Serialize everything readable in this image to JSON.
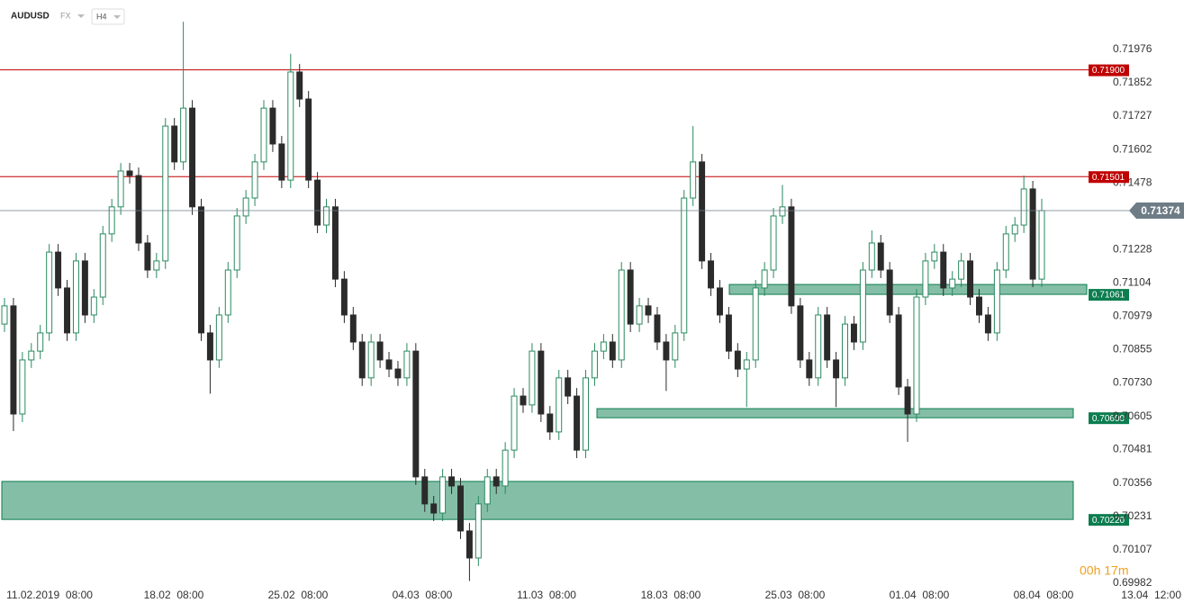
{
  "header": {
    "symbol": "AUDUSD",
    "market": "FX",
    "interval": "H4"
  },
  "timer": "00h 17m",
  "chart_data": {
    "type": "candlestick",
    "open": [
      0.7095,
      0.71018,
      0.70614,
      0.70816,
      0.70849,
      0.70917,
      0.71219,
      0.71085,
      0.70917,
      0.71186,
      0.70984,
      0.71051,
      0.71287,
      0.71388,
      0.71522,
      0.71505,
      0.71253,
      0.71152,
      0.71186,
      0.7169,
      0.71556,
      0.71757,
      0.71388,
      0.70917,
      0.70816,
      0.70984,
      0.71152,
      0.71354,
      0.71421,
      0.71556,
      0.71757,
      0.71623,
      0.71488,
      0.71892,
      0.71791,
      0.71488,
      0.7132,
      0.71388,
      0.71118,
      0.70984,
      0.70883,
      0.70749,
      0.70883,
      0.70816,
      0.70782,
      0.70749,
      0.70849,
      0.70379,
      0.70278,
      0.70244,
      0.70379,
      0.70345,
      0.70177,
      0.70076,
      0.70278,
      0.70379,
      0.70345,
      0.70479,
      0.70681,
      0.70648,
      0.70849,
      0.70614,
      0.70547,
      0.70749,
      0.70681,
      0.70479,
      0.70749,
      0.70849,
      0.70883,
      0.70816,
      0.71152,
      0.7095,
      0.71018,
      0.70984,
      0.70883,
      0.70816,
      0.70917,
      0.71421,
      0.71556,
      0.71186,
      0.71085,
      0.70984,
      0.70849,
      0.70782,
      0.70816,
      0.71085,
      0.71152,
      0.71354,
      0.71388,
      0.71018,
      0.70816,
      0.70749,
      0.70984,
      0.70816,
      0.70749,
      0.7095,
      0.70883,
      0.71152,
      0.71253,
      0.71152,
      0.70984,
      0.70715,
      0.70614,
      0.71051,
      0.71186,
      0.71219,
      0.71085,
      0.71118,
      0.71186,
      0.71051,
      0.70984,
      0.70917,
      0.71152,
      0.71287,
      0.7132,
      0.71455,
      0.71118
    ],
    "high": [
      0.71048,
      0.71048,
      0.70846,
      0.70879,
      0.70947,
      0.71249,
      0.71249,
      0.71115,
      0.71216,
      0.71216,
      0.71081,
      0.71317,
      0.71418,
      0.71552,
      0.71552,
      0.71535,
      0.71283,
      0.71216,
      0.7172,
      0.7172,
      0.7208,
      0.71787,
      0.71418,
      0.70947,
      0.71014,
      0.71182,
      0.71384,
      0.71451,
      0.71586,
      0.71787,
      0.71787,
      0.71653,
      0.7196,
      0.71922,
      0.71821,
      0.71518,
      0.71418,
      0.71418,
      0.71148,
      0.71014,
      0.70913,
      0.70913,
      0.70913,
      0.70846,
      0.70812,
      0.70879,
      0.70879,
      0.70409,
      0.70308,
      0.70409,
      0.70409,
      0.70375,
      0.70207,
      0.70308,
      0.70409,
      0.70409,
      0.70509,
      0.70711,
      0.70711,
      0.70879,
      0.70879,
      0.70644,
      0.70779,
      0.70779,
      0.70711,
      0.70779,
      0.70879,
      0.70913,
      0.70913,
      0.71182,
      0.71182,
      0.71048,
      0.71048,
      0.71014,
      0.70913,
      0.70947,
      0.71451,
      0.7169,
      0.71586,
      0.71216,
      0.71115,
      0.71014,
      0.70879,
      0.70846,
      0.71115,
      0.71182,
      0.71384,
      0.7147,
      0.71418,
      0.71048,
      0.70846,
      0.71014,
      0.71014,
      0.70846,
      0.7098,
      0.7098,
      0.71182,
      0.713,
      0.71283,
      0.71182,
      0.71014,
      0.70745,
      0.71081,
      0.71216,
      0.71249,
      0.71249,
      0.71148,
      0.71216,
      0.71216,
      0.71081,
      0.71014,
      0.71182,
      0.71317,
      0.7135,
      0.71505,
      0.71485,
      0.71418
    ],
    "low": [
      0.7092,
      0.7055,
      0.70584,
      0.70786,
      0.70819,
      0.70887,
      0.71055,
      0.70887,
      0.70887,
      0.70954,
      0.70954,
      0.71021,
      0.71257,
      0.71358,
      0.71475,
      0.71223,
      0.71122,
      0.71122,
      0.71156,
      0.71526,
      0.71526,
      0.71358,
      0.70887,
      0.7069,
      0.70786,
      0.70954,
      0.71122,
      0.71324,
      0.71391,
      0.71526,
      0.71593,
      0.71458,
      0.71458,
      0.71761,
      0.71458,
      0.7129,
      0.7129,
      0.71088,
      0.70954,
      0.70853,
      0.70719,
      0.70719,
      0.70786,
      0.70752,
      0.70719,
      0.70719,
      0.70349,
      0.70248,
      0.70214,
      0.70214,
      0.70315,
      0.70147,
      0.6999,
      0.70046,
      0.70248,
      0.70315,
      0.70315,
      0.70449,
      0.70618,
      0.70618,
      0.70584,
      0.70517,
      0.70517,
      0.70651,
      0.70449,
      0.70449,
      0.70719,
      0.70819,
      0.70786,
      0.70786,
      0.7092,
      0.7092,
      0.70954,
      0.70853,
      0.707,
      0.70786,
      0.70887,
      0.71391,
      0.71156,
      0.71055,
      0.70954,
      0.70819,
      0.70752,
      0.7064,
      0.70786,
      0.71055,
      0.71122,
      0.71324,
      0.70988,
      0.70786,
      0.70719,
      0.70719,
      0.70786,
      0.7064,
      0.70719,
      0.70853,
      0.70853,
      0.71122,
      0.71122,
      0.70954,
      0.70685,
      0.7051,
      0.70584,
      0.71021,
      0.71156,
      0.71055,
      0.71055,
      0.71088,
      0.71021,
      0.70954,
      0.70887,
      0.70887,
      0.71122,
      0.71257,
      0.7129,
      0.71088,
      0.71088
    ],
    "close": [
      0.71018,
      0.70614,
      0.70816,
      0.70849,
      0.70917,
      0.71219,
      0.71085,
      0.70917,
      0.71186,
      0.70984,
      0.71051,
      0.71287,
      0.71388,
      0.71522,
      0.71505,
      0.71253,
      0.71152,
      0.71186,
      0.7169,
      0.71556,
      0.71757,
      0.71388,
      0.70917,
      0.70816,
      0.70984,
      0.71152,
      0.71354,
      0.71421,
      0.71556,
      0.71757,
      0.71623,
      0.71488,
      0.71892,
      0.71791,
      0.71488,
      0.7132,
      0.71388,
      0.71118,
      0.70984,
      0.70883,
      0.70749,
      0.70883,
      0.70816,
      0.70782,
      0.70749,
      0.70849,
      0.70379,
      0.70278,
      0.70244,
      0.70379,
      0.70345,
      0.70177,
      0.70076,
      0.70278,
      0.70379,
      0.70345,
      0.70479,
      0.70681,
      0.70648,
      0.70849,
      0.70614,
      0.70547,
      0.70749,
      0.70681,
      0.70479,
      0.70749,
      0.70849,
      0.70883,
      0.70816,
      0.71152,
      0.7095,
      0.71018,
      0.70984,
      0.70883,
      0.70816,
      0.70917,
      0.71421,
      0.71556,
      0.71186,
      0.71085,
      0.70984,
      0.70849,
      0.70782,
      0.70816,
      0.71085,
      0.71152,
      0.71354,
      0.71388,
      0.71018,
      0.70816,
      0.70749,
      0.70984,
      0.70816,
      0.70749,
      0.7095,
      0.70883,
      0.71152,
      0.71253,
      0.71152,
      0.70984,
      0.70715,
      0.70614,
      0.71051,
      0.71186,
      0.71219,
      0.71085,
      0.71118,
      0.71186,
      0.71051,
      0.70984,
      0.70917,
      0.71152,
      0.71287,
      0.7132,
      0.71455,
      0.71118,
      0.71374
    ],
    "up_color": "#2a8a5f",
    "down_color": "#2b2b2b",
    "ylim": [
      0.69975,
      0.72161
    ],
    "yticks": [
      0.71976,
      0.71852,
      0.71727,
      0.71602,
      0.71478,
      0.71228,
      0.71104,
      0.70979,
      0.70855,
      {
        "value": 0.7073,
        "label": "0.70730"
      },
      0.70605,
      0.70481,
      0.70356,
      0.70231,
      0.70107,
      0.69982
    ],
    "xticks": [
      "11.02.2019  08:00",
      "18.02  08:00",
      "25.02  08:00",
      "04.03  08:00",
      "11.03  08:00",
      "18.03  08:00",
      "25.03  08:00",
      "01.04  08:00",
      "08.04  08:00",
      "13.04  12:00"
    ],
    "levels": [
      {
        "value": 0.719,
        "label": "0.71900",
        "color": "#c00000"
      },
      {
        "value": 0.71501,
        "label": "0.71501",
        "color": "#c00000"
      }
    ],
    "current": {
      "value": 0.71374,
      "label": "0.71374",
      "color": "#6e7c86"
    },
    "zones": [
      {
        "top": 0.71098,
        "bottom": 0.71061,
        "label": "0.71061"
      },
      {
        "top": 0.70634,
        "bottom": 0.706,
        "label": "0.70600"
      },
      {
        "top": 0.70362,
        "bottom": 0.7022,
        "label": "0.70220"
      }
    ],
    "zone_color": "#0b7d4f"
  }
}
